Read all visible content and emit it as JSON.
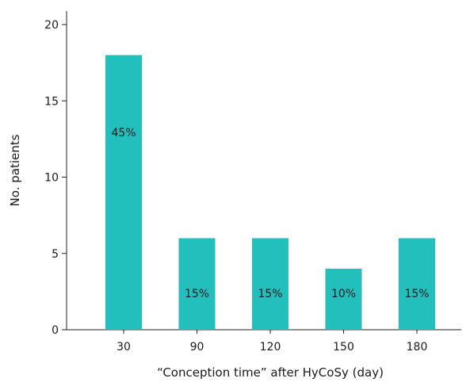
{
  "chart_data": {
    "type": "bar",
    "title": "",
    "xlabel": "“Conception time” after HyCoSy (day)",
    "ylabel": "No. patients",
    "categories": [
      "30",
      "90",
      "120",
      "150",
      "180"
    ],
    "values": [
      18,
      6,
      6,
      4,
      6
    ],
    "bar_labels": [
      "45%",
      "15%",
      "15%",
      "10%",
      "15%"
    ],
    "ylim": [
      0,
      20
    ],
    "yticks": [
      0,
      5,
      10,
      15,
      20
    ],
    "grid": false,
    "legend": "none",
    "colors": {
      "bar": "#22bfbd"
    }
  }
}
